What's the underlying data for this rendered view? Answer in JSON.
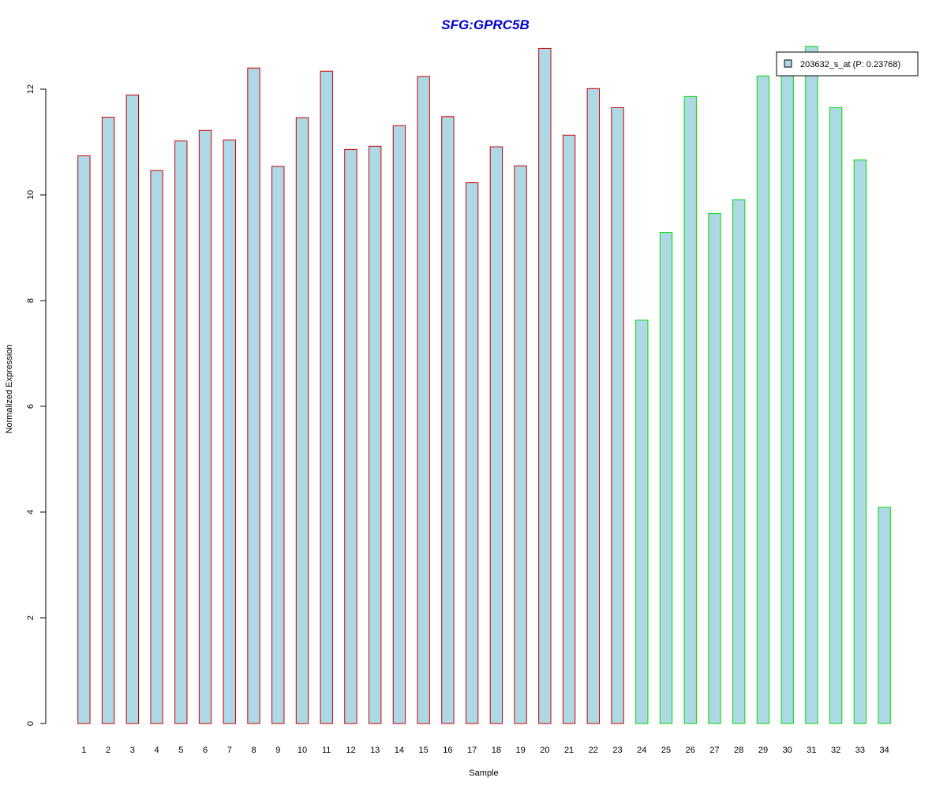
{
  "chart_data": {
    "type": "bar",
    "title": "SFG:GPRC5B",
    "xlabel": "Sample",
    "ylabel": "Normalized Expression",
    "ylim": [
      0,
      12
    ],
    "yticks": [
      0,
      2,
      4,
      6,
      8,
      10,
      12
    ],
    "grid": false,
    "categories": [
      "1",
      "2",
      "3",
      "4",
      "5",
      "6",
      "7",
      "8",
      "9",
      "10",
      "11",
      "12",
      "13",
      "14",
      "15",
      "16",
      "17",
      "18",
      "19",
      "20",
      "21",
      "22",
      "23",
      "24",
      "25",
      "26",
      "27",
      "28",
      "29",
      "30",
      "31",
      "32",
      "33",
      "34"
    ],
    "series": [
      {
        "name": "203632_s_at (P: 0.23768)",
        "values": [
          10.74,
          11.47,
          11.89,
          10.46,
          11.02,
          11.22,
          11.04,
          12.4,
          10.54,
          11.46,
          12.34,
          10.86,
          10.92,
          11.31,
          12.24,
          11.48,
          10.23,
          10.91,
          10.55,
          12.77,
          11.13,
          12.01,
          11.65,
          7.63,
          9.29,
          11.86,
          9.65,
          9.91,
          12.25,
          12.3,
          12.81,
          11.65,
          10.66,
          4.09
        ]
      }
    ],
    "group_colors": [
      "#cc0000",
      "#cc0000",
      "#cc0000",
      "#cc0000",
      "#cc0000",
      "#cc0000",
      "#cc0000",
      "#cc0000",
      "#cc0000",
      "#cc0000",
      "#cc0000",
      "#cc0000",
      "#cc0000",
      "#cc0000",
      "#cc0000",
      "#cc0000",
      "#cc0000",
      "#cc0000",
      "#cc0000",
      "#cc0000",
      "#cc0000",
      "#cc0000",
      "#cc0000",
      "#00dd00",
      "#00dd00",
      "#00dd00",
      "#00dd00",
      "#00dd00",
      "#00dd00",
      "#00dd00",
      "#00dd00",
      "#00dd00",
      "#00dd00",
      "#00dd00"
    ],
    "fill_color": "#add8e6",
    "title_color": "#0000cc",
    "legend": {
      "placement": "top-right",
      "label": "203632_s_at (P: 0.23768)"
    }
  }
}
